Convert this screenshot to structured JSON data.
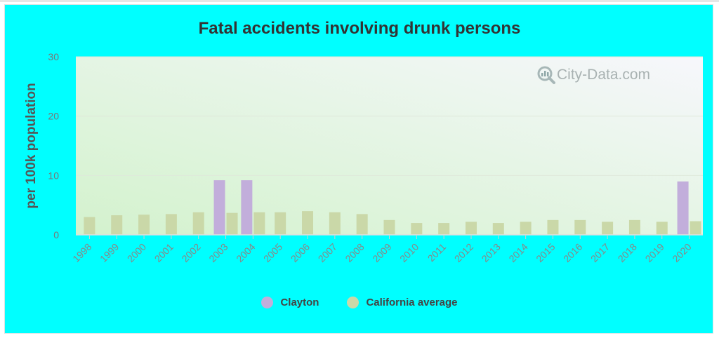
{
  "chart_data": {
    "type": "bar",
    "title": "Fatal accidents involving drunk persons",
    "ylabel": "per 100k population",
    "xlabel": "",
    "ylim": [
      0,
      30
    ],
    "yticks": [
      0,
      10,
      20,
      30
    ],
    "categories": [
      "1998",
      "1999",
      "2000",
      "2001",
      "2002",
      "2003",
      "2004",
      "2005",
      "2006",
      "2007",
      "2008",
      "2009",
      "2010",
      "2011",
      "2012",
      "2013",
      "2014",
      "2015",
      "2016",
      "2017",
      "2018",
      "2019",
      "2020"
    ],
    "series": [
      {
        "name": "Clayton",
        "color": "#c2aedb",
        "values": [
          null,
          null,
          null,
          null,
          null,
          9.2,
          9.2,
          null,
          null,
          null,
          null,
          null,
          null,
          null,
          null,
          null,
          null,
          null,
          null,
          null,
          null,
          null,
          9.0
        ]
      },
      {
        "name": "California average",
        "color": "#cad8a8",
        "values": [
          3.0,
          3.3,
          3.4,
          3.5,
          3.8,
          3.7,
          3.8,
          3.8,
          4.0,
          3.8,
          3.5,
          2.5,
          2.0,
          2.0,
          2.2,
          2.0,
          2.2,
          2.5,
          2.5,
          2.2,
          2.5,
          2.2,
          2.3
        ]
      }
    ],
    "legend_position": "bottom",
    "grid": true
  },
  "watermark": "City-Data.com"
}
